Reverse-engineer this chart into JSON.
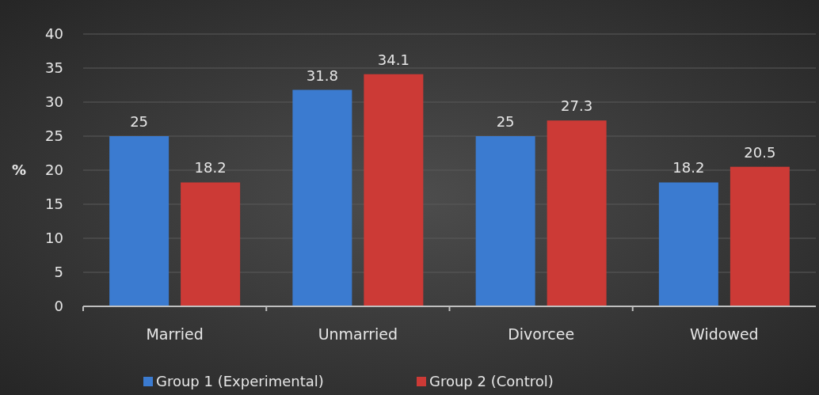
{
  "chart_data": {
    "type": "bar",
    "ylabel": "%",
    "categories": [
      "Married",
      "Unmarried",
      "Divorcee",
      "Widowed"
    ],
    "series": [
      {
        "name": "Group 1 (Experimental)",
        "color": "#3b7bd0",
        "values": [
          25,
          31.8,
          25,
          18.2
        ]
      },
      {
        "name": "Group 2 (Control)",
        "color": "#cc3a36",
        "values": [
          18.2,
          34.1,
          27.3,
          20.5
        ]
      }
    ],
    "ylim": [
      0,
      40
    ],
    "yticks": [
      0,
      5,
      10,
      15,
      20,
      25,
      30,
      35,
      40
    ],
    "grid": "y",
    "legend": "bottom",
    "data_labels": true
  }
}
